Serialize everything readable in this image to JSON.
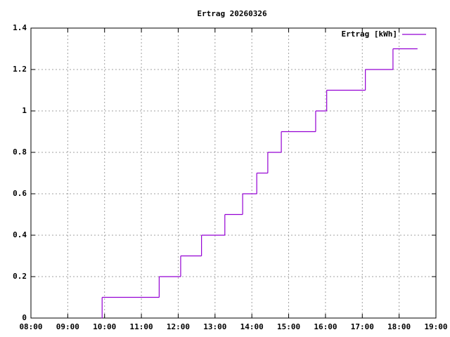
{
  "chart_data": {
    "type": "step",
    "title": "Ertrag 20260326",
    "x": [
      "09:55",
      "09:56",
      "11:29",
      "12:04",
      "12:38",
      "13:16",
      "13:45",
      "14:08",
      "14:26",
      "14:48",
      "15:44",
      "16:02",
      "17:05",
      "17:50",
      "18:30"
    ],
    "series": [
      {
        "name": "Ertrag [kWh]",
        "color": "#9400d3",
        "values": [
          0,
          0.1,
          0.2,
          0.3,
          0.4,
          0.5,
          0.6,
          0.7,
          0.8,
          0.9,
          1.0,
          1.1,
          1.2,
          1.3,
          1.3
        ]
      }
    ],
    "xlim": [
      "08:00",
      "19:00"
    ],
    "xticks": [
      "08:00",
      "09:00",
      "10:00",
      "11:00",
      "12:00",
      "13:00",
      "14:00",
      "15:00",
      "16:00",
      "17:00",
      "18:00",
      "19:00"
    ],
    "ylim": [
      0,
      1.4
    ],
    "yticks": [
      0,
      0.2,
      0.4,
      0.6,
      0.8,
      1,
      1.2,
      1.4
    ],
    "grid": true,
    "legend": "top-right"
  }
}
